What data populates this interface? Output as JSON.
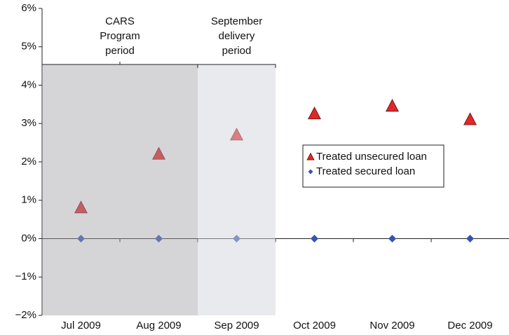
{
  "chart_data": {
    "type": "scatter",
    "categories": [
      "Jul 2009",
      "Aug 2009",
      "Sep 2009",
      "Oct 2009",
      "Nov 2009",
      "Dec 2009"
    ],
    "series": [
      {
        "name": "Treated unsecured loan",
        "color": "#e32626",
        "marker": "triangle",
        "values": [
          0.8,
          2.2,
          2.7,
          3.25,
          3.45,
          3.1
        ]
      },
      {
        "name": "Treated secured loan",
        "color": "#3553b3",
        "marker": "diamond",
        "values": [
          0,
          0,
          0,
          0,
          0,
          0
        ]
      }
    ],
    "annotations": [
      {
        "lines": [
          "CARS",
          "Program",
          "period"
        ]
      },
      {
        "lines": [
          "September",
          "delivery",
          "period"
        ]
      }
    ],
    "ylim": [
      -2,
      6
    ],
    "yticks": [
      {
        "value": -2,
        "label": "−2%"
      },
      {
        "value": -1,
        "label": "−1%"
      },
      {
        "value": 0,
        "label": "0%"
      },
      {
        "value": 1,
        "label": "1%"
      },
      {
        "value": 2,
        "label": "2%"
      },
      {
        "value": 3,
        "label": "3%"
      },
      {
        "value": 4,
        "label": "4%"
      },
      {
        "value": 5,
        "label": "5%"
      },
      {
        "value": 6,
        "label": "6%"
      }
    ]
  }
}
